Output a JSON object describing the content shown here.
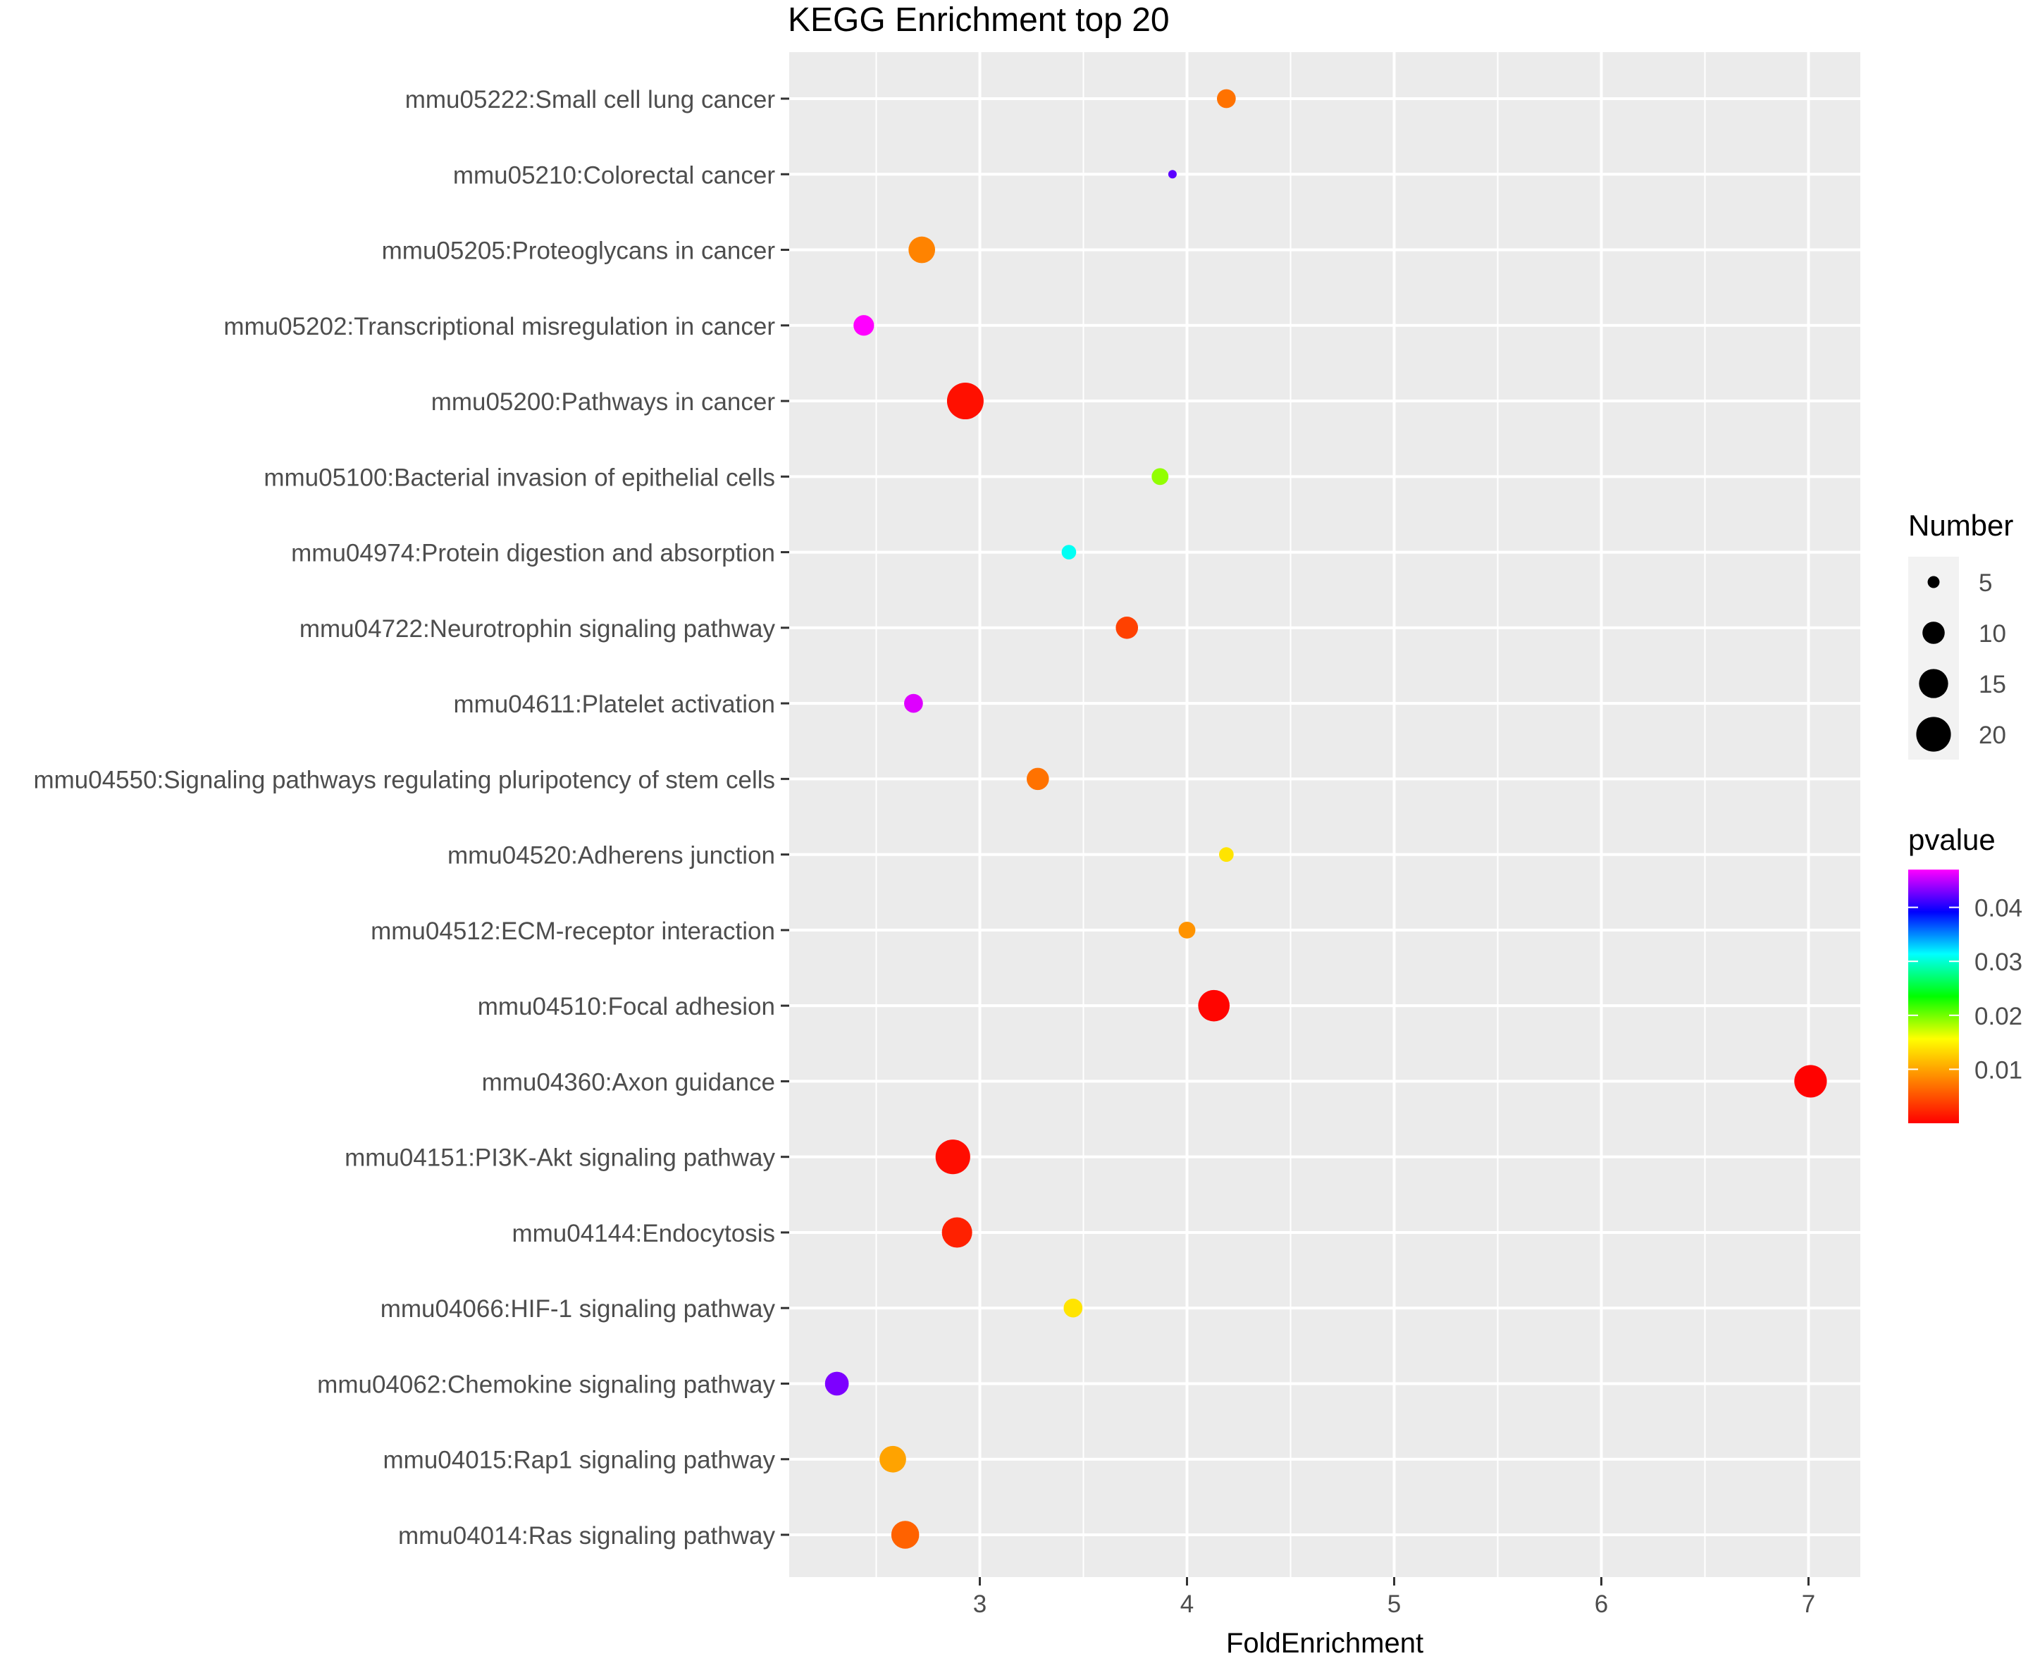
{
  "chart_data": {
    "type": "scatter",
    "title": "KEGG Enrichment top 20",
    "xlabel": "FoldEnrichment",
    "ylabel": "",
    "xlim": [
      2.08,
      7.25
    ],
    "x_ticks": [
      3,
      4,
      5,
      6,
      7
    ],
    "x_tick_labels": [
      "3",
      "4",
      "5",
      "6",
      "7"
    ],
    "grid": true,
    "categories": [
      "mmu05222:Small cell lung cancer",
      "mmu05210:Colorectal cancer",
      "mmu05205:Proteoglycans in cancer",
      "mmu05202:Transcriptional misregulation in cancer",
      "mmu05200:Pathways in cancer",
      "mmu05100:Bacterial invasion of epithelial cells",
      "mmu04974:Protein digestion and absorption",
      "mmu04722:Neurotrophin signaling pathway",
      "mmu04611:Platelet activation",
      "mmu04550:Signaling pathways regulating pluripotency of stem cells",
      "mmu04520:Adherens junction",
      "mmu04512:ECM-receptor interaction",
      "mmu04510:Focal adhesion",
      "mmu04360:Axon guidance",
      "mmu04151:PI3K-Akt signaling pathway",
      "mmu04144:Endocytosis",
      "mmu04066:HIF-1 signaling pathway",
      "mmu04062:Chemokine signaling pathway",
      "mmu04015:Rap1 signaling pathway",
      "mmu04014:Ras signaling pathway"
    ],
    "points": [
      {
        "term": "mmu05222:Small cell lung cancer",
        "fold_enrichment": 4.19,
        "number": 8,
        "pvalue": 0.007
      },
      {
        "term": "mmu05210:Colorectal cancer",
        "fold_enrichment": 3.93,
        "number": 4,
        "pvalue": 0.042
      },
      {
        "term": "mmu05205:Proteoglycans in cancer",
        "fold_enrichment": 2.72,
        "number": 13,
        "pvalue": 0.008
      },
      {
        "term": "mmu05202:Transcriptional misregulation in cancer",
        "fold_enrichment": 2.44,
        "number": 9,
        "pvalue": 0.047
      },
      {
        "term": "mmu05200:Pathways in cancer",
        "fold_enrichment": 2.93,
        "number": 22,
        "pvalue": 0.001
      },
      {
        "term": "mmu05100:Bacterial invasion of epithelial cells",
        "fold_enrichment": 3.87,
        "number": 7,
        "pvalue": 0.019
      },
      {
        "term": "mmu04974:Protein digestion and absorption",
        "fold_enrichment": 3.43,
        "number": 6,
        "pvalue": 0.031
      },
      {
        "term": "mmu04722:Neurotrophin signaling pathway",
        "fold_enrichment": 3.71,
        "number": 10,
        "pvalue": 0.004
      },
      {
        "term": "mmu04611:Platelet activation",
        "fold_enrichment": 2.68,
        "number": 8,
        "pvalue": 0.046
      },
      {
        "term": "mmu04550:Signaling pathways regulating pluripotency of stem cells",
        "fold_enrichment": 3.28,
        "number": 10,
        "pvalue": 0.007
      },
      {
        "term": "mmu04520:Adherens junction",
        "fold_enrichment": 4.19,
        "number": 6,
        "pvalue": 0.014
      },
      {
        "term": "mmu04512:ECM-receptor interaction",
        "fold_enrichment": 4.0,
        "number": 7,
        "pvalue": 0.009
      },
      {
        "term": "mmu04510:Focal adhesion",
        "fold_enrichment": 4.13,
        "number": 17,
        "pvalue": 0.0003
      },
      {
        "term": "mmu04360:Axon guidance",
        "fold_enrichment": 7.01,
        "number": 18,
        "pvalue": 0.0001
      },
      {
        "term": "mmu04151:PI3K-Akt signaling pathway",
        "fold_enrichment": 2.87,
        "number": 20,
        "pvalue": 0.0008
      },
      {
        "term": "mmu04144:Endocytosis",
        "fold_enrichment": 2.89,
        "number": 16,
        "pvalue": 0.002
      },
      {
        "term": "mmu04066:HIF-1 signaling pathway",
        "fold_enrichment": 3.45,
        "number": 8,
        "pvalue": 0.014
      },
      {
        "term": "mmu04062:Chemokine signaling pathway",
        "fold_enrichment": 2.31,
        "number": 11,
        "pvalue": 0.043
      },
      {
        "term": "mmu04015:Rap1 signaling pathway",
        "fold_enrichment": 2.58,
        "number": 13,
        "pvalue": 0.01
      },
      {
        "term": "mmu04014:Ras signaling pathway",
        "fold_enrichment": 2.64,
        "number": 14,
        "pvalue": 0.006
      }
    ],
    "size_legend": {
      "title": "Number",
      "values": [
        5,
        10,
        15,
        20
      ],
      "labels": [
        "5",
        "10",
        "15",
        "20"
      ],
      "number_range": [
        4,
        22
      ]
    },
    "color_legend": {
      "title": "pvalue",
      "range": [
        0,
        0.047
      ],
      "ticks": [
        0.01,
        0.02,
        0.03,
        0.04
      ],
      "tick_labels": [
        "0.01",
        "0.02",
        "0.03",
        "0.04"
      ],
      "colors": [
        "#FF0000",
        "#FF8000",
        "#FFFF00",
        "#00FF00",
        "#00FFFF",
        "#0000FF",
        "#FF00FF"
      ]
    },
    "colors": {
      "panel_background": "#EBEBEB",
      "grid_major": "#FFFFFF",
      "axis_text": "#4D4D4D",
      "title_text": "#000000",
      "legend_key_background": "#F2F2F2"
    }
  }
}
